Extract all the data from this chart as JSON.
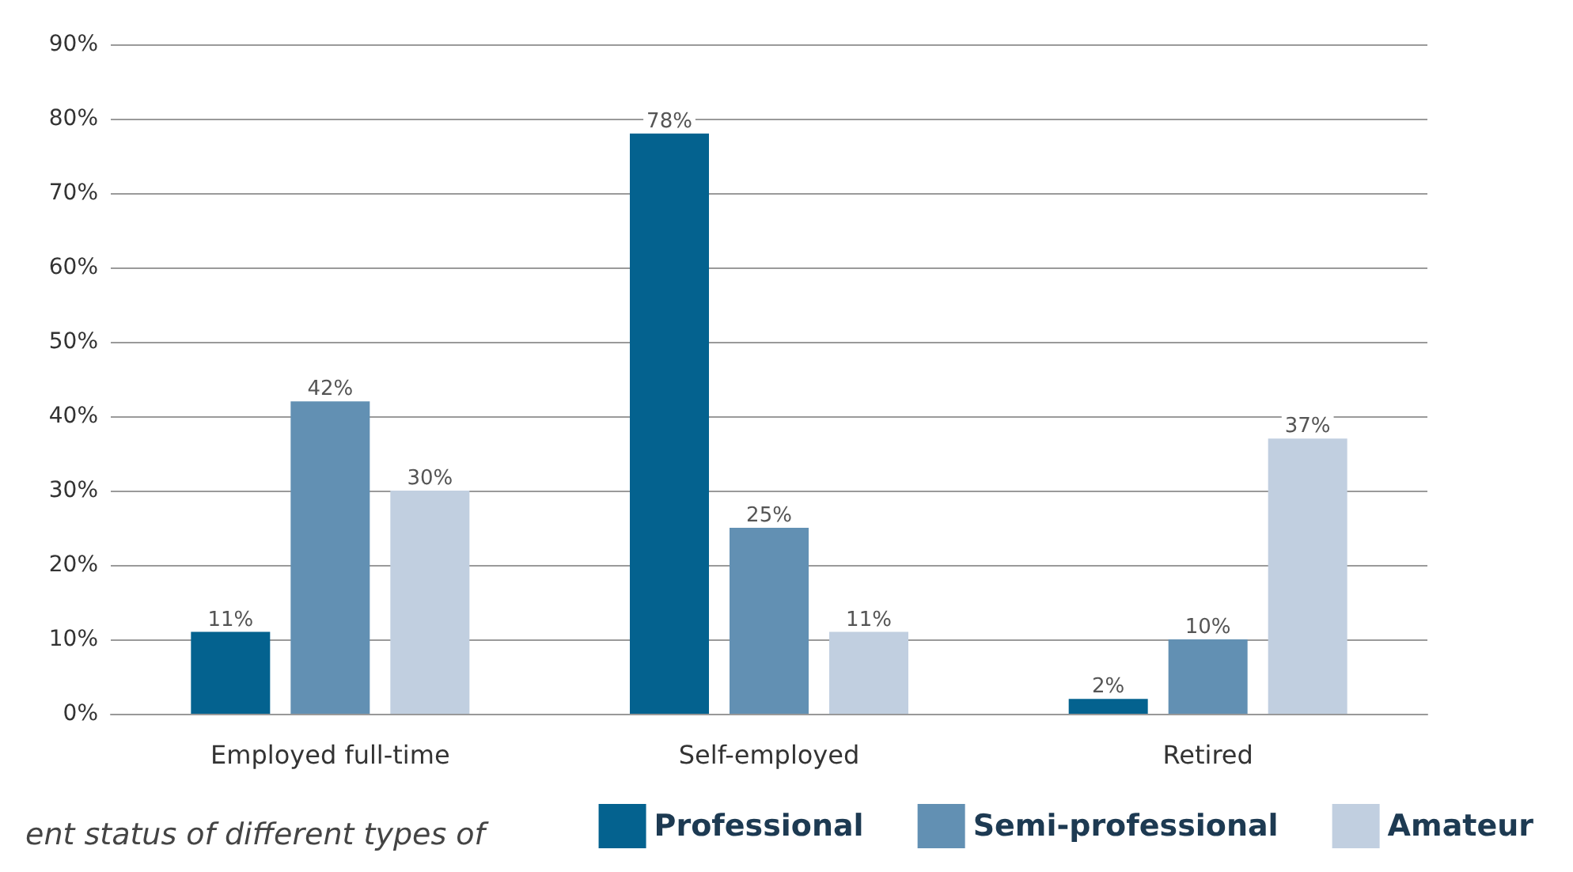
{
  "chart_data": {
    "type": "bar",
    "categories": [
      "Employed full-time",
      "Self-employed",
      "Retired"
    ],
    "series": [
      {
        "name": "Professional",
        "color": "#04628f",
        "values": [
          11,
          78,
          2
        ],
        "value_labels": [
          "11%",
          "78%",
          "2%"
        ]
      },
      {
        "name": "Semi-professional",
        "color": "#6290b3",
        "values": [
          42,
          25,
          10
        ],
        "value_labels": [
          "42%",
          "25%",
          "10%"
        ]
      },
      {
        "name": "Amateur",
        "color": "#c1cfe0",
        "values": [
          30,
          11,
          37
        ],
        "value_labels": [
          "30%",
          "11%",
          "37%"
        ]
      }
    ],
    "ylim": [
      0,
      90
    ],
    "yticks": [
      {
        "value": 0,
        "label": "0%"
      },
      {
        "value": 10,
        "label": "10%"
      },
      {
        "value": 20,
        "label": "20%"
      },
      {
        "value": 30,
        "label": "30%"
      },
      {
        "value": 40,
        "label": "40%"
      },
      {
        "value": 50,
        "label": "50%"
      },
      {
        "value": 60,
        "label": "60%"
      },
      {
        "value": 70,
        "label": "70%"
      },
      {
        "value": 80,
        "label": "80%"
      },
      {
        "value": 90,
        "label": "90%"
      }
    ],
    "grid": "y",
    "legend": "bottom right",
    "annotations": [
      "ent status of different types of"
    ]
  }
}
